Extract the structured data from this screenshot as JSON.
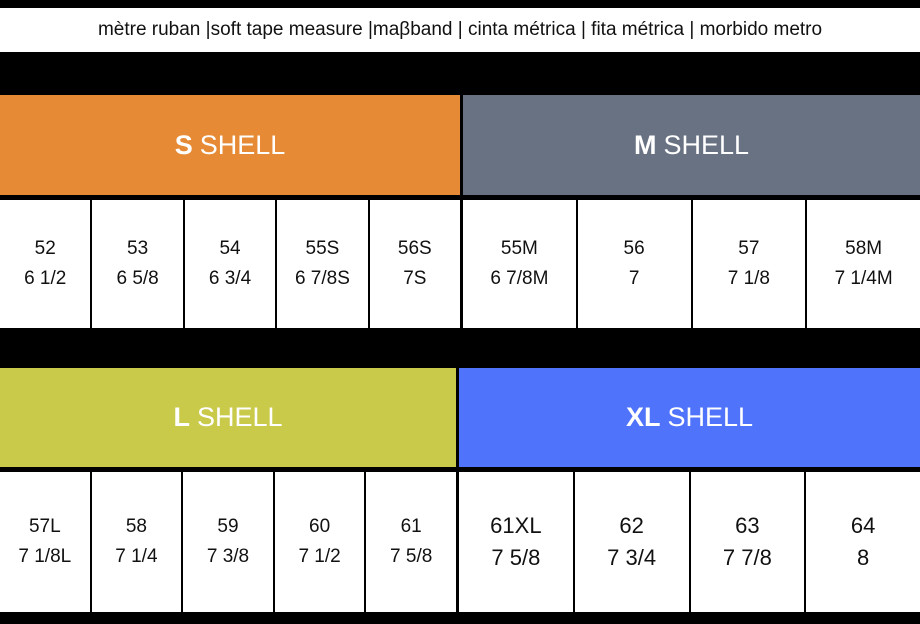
{
  "title": "mètre ruban |soft tape measure |maβband | cinta métrica |  fita métrica | morbido metro",
  "colors": {
    "S": "#e68a35",
    "M": "#687282",
    "L": "#c9c94a",
    "XL": "#4f73fb"
  },
  "shells": [
    {
      "size": "S",
      "label": "SHELL",
      "sizes": [
        {
          "cm": "52",
          "in": "6 1/2"
        },
        {
          "cm": "53",
          "in": "6 5/8"
        },
        {
          "cm": "54",
          "in": "6  3/4"
        },
        {
          "cm": "55S",
          "in": "6 7/8S"
        },
        {
          "cm": "56S",
          "in": "7S"
        }
      ]
    },
    {
      "size": "M",
      "label": "SHELL",
      "sizes": [
        {
          "cm": "55M",
          "in": "6 7/8M"
        },
        {
          "cm": "56",
          "in": "7"
        },
        {
          "cm": "57",
          "in": "7 1/8"
        },
        {
          "cm": "58M",
          "in": "7 1/4M"
        }
      ]
    },
    {
      "size": "L",
      "label": "SHELL",
      "sizes": [
        {
          "cm": "57L",
          "in": "7 1/8L"
        },
        {
          "cm": "58",
          "in": "7 1/4"
        },
        {
          "cm": "59",
          "in": "7 3/8"
        },
        {
          "cm": "60",
          "in": "7 1/2"
        },
        {
          "cm": "61",
          "in": "7 5/8"
        }
      ]
    },
    {
      "size": "XL",
      "label": "SHELL",
      "sizes": [
        {
          "cm": "61XL",
          "in": "7 5/8"
        },
        {
          "cm": "62",
          "in": "7 3/4"
        },
        {
          "cm": "63",
          "in": "7 7/8"
        },
        {
          "cm": "64",
          "in": "8"
        }
      ]
    }
  ]
}
